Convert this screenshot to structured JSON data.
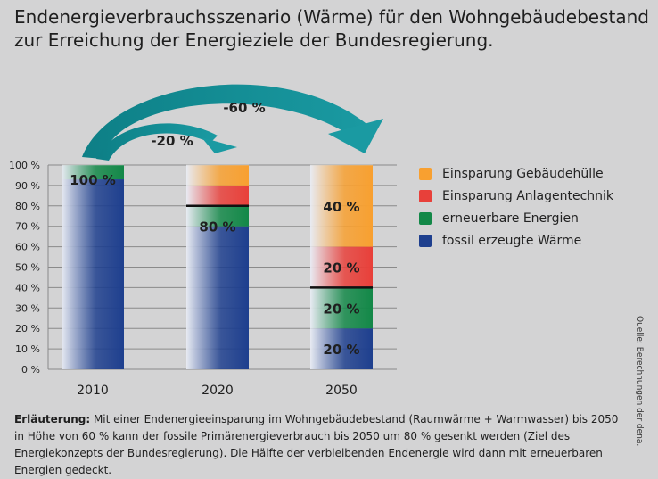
{
  "title": {
    "line1": "Endenergieverbrauchsszenario (Wärme) für den Wohngebäudebestand",
    "line2": "zur Erreichung der Energieziele der Bundesregierung."
  },
  "chart_data": {
    "type": "bar",
    "stacked": true,
    "categories": [
      "2010",
      "2020",
      "2050"
    ],
    "ylim": [
      0,
      100
    ],
    "y_ticks": [
      "0 %",
      "10 %",
      "20 %",
      "30 %",
      "40 %",
      "50 %",
      "60 %",
      "70 %",
      "80 %",
      "90 %",
      "100 %"
    ],
    "series": [
      {
        "name": "fossil erzeugte Wärme",
        "color": "#1e3f8e",
        "values": [
          93,
          70,
          20
        ]
      },
      {
        "name": "erneuerbare Energien",
        "color": "#138848",
        "values": [
          7,
          10,
          20
        ]
      },
      {
        "name": "Einsparung Anlagentechnik",
        "color": "#e8403a",
        "values": [
          0,
          10,
          20
        ]
      },
      {
        "name": "Einsparung Gebäudehülle",
        "color": "#f8a030",
        "values": [
          0,
          10,
          40
        ]
      }
    ],
    "marker_lines": [
      null,
      80,
      40
    ],
    "bar_labels": [
      [
        {
          "text": "100 %",
          "y": 93
        }
      ],
      [
        {
          "text": "80 %",
          "y": 70
        }
      ],
      [
        {
          "text": "20 %",
          "y": 10
        },
        {
          "text": "20 %",
          "y": 30
        },
        {
          "text": "20 %",
          "y": 50
        },
        {
          "text": "40 %",
          "y": 80
        }
      ]
    ],
    "annotations": [
      "-20 %",
      "-60 %"
    ],
    "grid": true,
    "legend_position": "right"
  },
  "legend": [
    {
      "label": "Einsparung Gebäudehülle",
      "color": "#f8a030"
    },
    {
      "label": "Einsparung Anlagentechnik",
      "color": "#e8403a"
    },
    {
      "label": "erneuerbare Energien",
      "color": "#138848"
    },
    {
      "label": "fossil erzeugte Wärme",
      "color": "#1e3f8e"
    }
  ],
  "explanation": {
    "label": "Erläuterung:",
    "text": " Mit einer Endenergieeinsparung im Wohngebäudebestand (Raumwärme + Warmwasser) bis 2050 in Höhe von 60 % kann der fossile Primärenergieverbrauch bis 2050 um 80 % gesenkt werden (Ziel des Energiekonzepts der Bundesregierung). Die Hälfte der verbleibenden Endenergie wird dann mit erneuerbaren Energien gedeckt."
  },
  "source": "Quelle: Berechnungen der dena."
}
